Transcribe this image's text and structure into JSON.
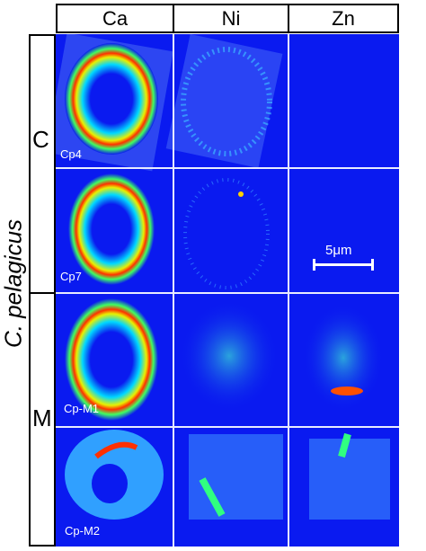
{
  "columns": [
    "Ca",
    "Ni",
    "Zn"
  ],
  "species": "C. pelagicus",
  "groups": [
    "C",
    "M"
  ],
  "cells": [
    "Cp4",
    "Cp7",
    "Cp-M1",
    "Cp-M2"
  ],
  "scale": "5μm",
  "colors": {
    "background_blue": "#0a1af0",
    "divider": "#e8ecff"
  }
}
